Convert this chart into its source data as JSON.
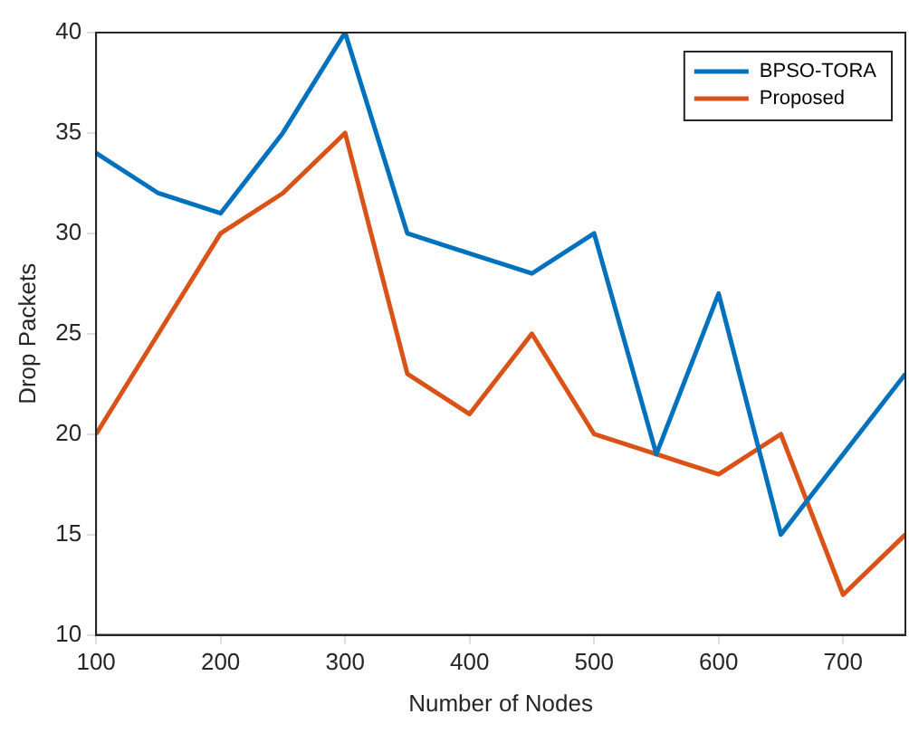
{
  "chart_data": {
    "type": "line",
    "xlabel": "Number of Nodes",
    "ylabel": "Drop Packets",
    "x": [
      100,
      150,
      200,
      250,
      300,
      350,
      400,
      450,
      500,
      550,
      600,
      650,
      700,
      750
    ],
    "series": [
      {
        "name": "BPSO-TORA",
        "color": "#0072bd",
        "values": [
          34,
          32,
          31,
          35,
          40,
          30,
          29,
          28,
          30,
          19,
          27,
          15,
          19,
          23
        ]
      },
      {
        "name": "Proposed",
        "color": "#d95319",
        "values": [
          20,
          25,
          30,
          32,
          35,
          23,
          21,
          25,
          20,
          19,
          18,
          20,
          12,
          15
        ]
      }
    ],
    "xlim": [
      100,
      750
    ],
    "xticks": [
      100,
      200,
      300,
      400,
      500,
      600,
      700
    ],
    "ylim": [
      10,
      40
    ],
    "yticks": [
      10,
      15,
      20,
      25,
      30,
      35,
      40
    ],
    "grid": false,
    "legend": "top right",
    "marker": "none",
    "line_style": "solid"
  }
}
